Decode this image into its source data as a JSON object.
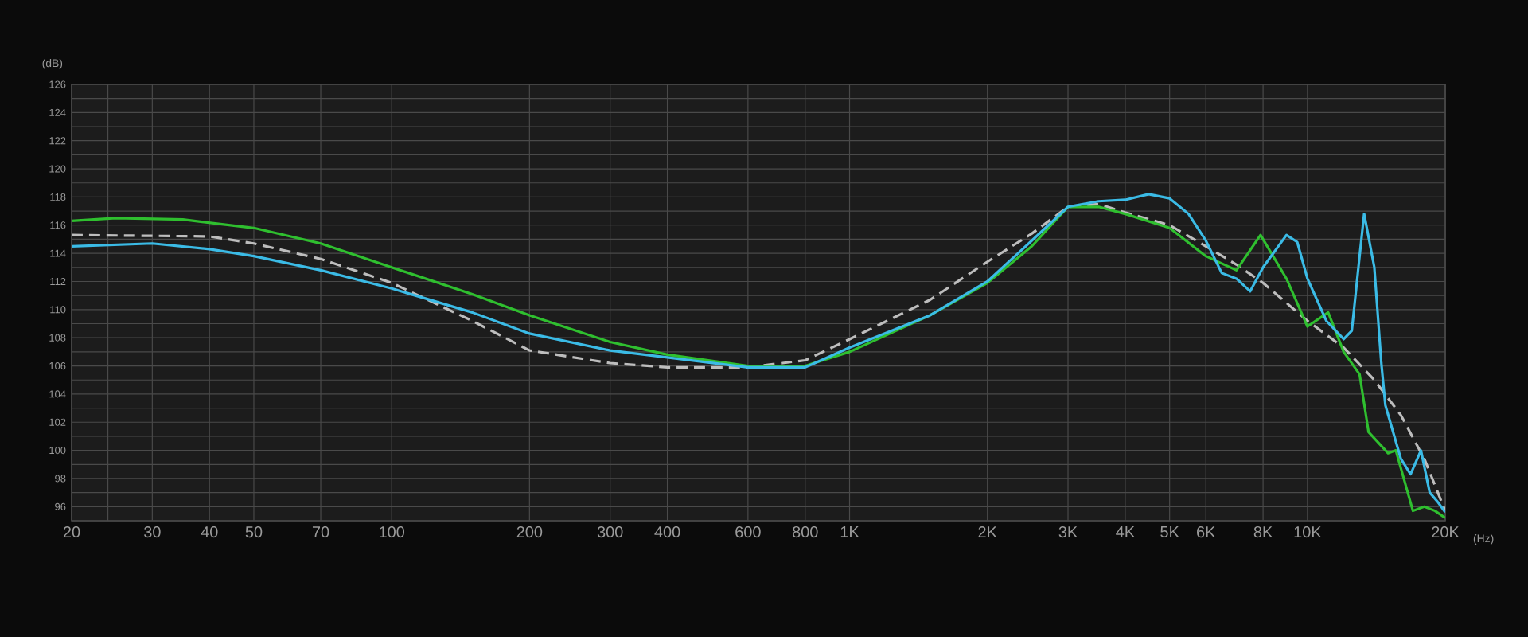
{
  "chart_data": {
    "type": "line",
    "xlabel": "(Hz)",
    "ylabel": "(dB)",
    "log": "x",
    "grid": true,
    "marker": "none",
    "xlim": [
      20,
      20000
    ],
    "ylim": [
      95,
      126
    ],
    "xticks": [
      20,
      {
        "value": 24,
        "label": null
      },
      30,
      40,
      50,
      70,
      100,
      200,
      300,
      400,
      600,
      800,
      {
        "value": 1000,
        "label": "1K"
      },
      {
        "value": 2000,
        "label": "2K"
      },
      {
        "value": 3000,
        "label": "3K"
      },
      {
        "value": 4000,
        "label": "4K"
      },
      {
        "value": 5000,
        "label": "5K"
      },
      {
        "value": 6000,
        "label": "6K"
      },
      {
        "value": 8000,
        "label": "8K"
      },
      {
        "value": 10000,
        "label": "10K"
      },
      {
        "value": 20000,
        "label": "20K"
      }
    ],
    "yticks": [
      {
        "value": 95,
        "label": null
      },
      96,
      {
        "value": 97,
        "label": null
      },
      98,
      {
        "value": 99,
        "label": null
      },
      100,
      {
        "value": 101,
        "label": null
      },
      102,
      {
        "value": 103,
        "label": null
      },
      104,
      {
        "value": 105,
        "label": null
      },
      106,
      {
        "value": 107,
        "label": null
      },
      108,
      {
        "value": 109,
        "label": null
      },
      110,
      {
        "value": 111,
        "label": null
      },
      112,
      {
        "value": 113,
        "label": null
      },
      114,
      {
        "value": 115,
        "label": null
      },
      116,
      {
        "value": 117,
        "label": null
      },
      118,
      {
        "value": 119,
        "label": null
      },
      120,
      {
        "value": 121,
        "label": null
      },
      122,
      {
        "value": 123,
        "label": null
      },
      124,
      {
        "value": 125,
        "label": null
      },
      126
    ],
    "series": [
      {
        "color": "#bdbdbd",
        "line_style": "dashed",
        "x": [
          20,
          40,
          50,
          70,
          100,
          150,
          200,
          300,
          400,
          600,
          800,
          1000,
          1500,
          2000,
          2500,
          3000,
          3500,
          4000,
          5000,
          6000,
          7000,
          8000,
          10000,
          12000,
          14000,
          16000,
          18000,
          20000
        ],
        "values": [
          115.3,
          115.2,
          114.7,
          113.6,
          111.9,
          109.2,
          107.1,
          106.2,
          105.9,
          105.9,
          106.4,
          107.9,
          110.7,
          113.4,
          115.4,
          117.3,
          117.5,
          116.9,
          116.0,
          114.5,
          113.2,
          111.9,
          109.2,
          107.3,
          105.0,
          102.5,
          99.4,
          95.7
        ]
      },
      {
        "color": "#2fbf2f",
        "line_style": "solid",
        "x": [
          20,
          25,
          35,
          50,
          70,
          100,
          150,
          200,
          300,
          400,
          600,
          800,
          1000,
          1500,
          2000,
          2500,
          3000,
          3500,
          4000,
          5000,
          6000,
          7000,
          7900,
          9000,
          10000,
          11100,
          12000,
          13000,
          13600,
          15000,
          15600,
          17000,
          18000,
          19000,
          20000
        ],
        "values": [
          116.3,
          116.5,
          116.4,
          115.8,
          114.7,
          113.0,
          111.1,
          109.6,
          107.7,
          106.8,
          106.0,
          106.0,
          107.0,
          109.6,
          111.9,
          114.5,
          117.3,
          117.3,
          116.8,
          115.8,
          113.8,
          112.8,
          115.3,
          112.2,
          108.8,
          109.8,
          107.0,
          105.4,
          101.3,
          99.8,
          100.0,
          95.7,
          96.0,
          95.7,
          95.2
        ]
      },
      {
        "color": "#3bbbe6",
        "line_style": "solid",
        "x": [
          20,
          30,
          40,
          50,
          70,
          100,
          150,
          200,
          300,
          400,
          600,
          800,
          1000,
          1500,
          2000,
          2500,
          3000,
          3500,
          4000,
          4500,
          5000,
          5500,
          6000,
          6500,
          7000,
          7500,
          8000,
          9000,
          9500,
          10000,
          11000,
          12000,
          12500,
          13000,
          13300,
          14000,
          14500,
          14800,
          16000,
          16800,
          17700,
          18500,
          19300,
          20000
        ],
        "values": [
          114.5,
          114.7,
          114.3,
          113.8,
          112.8,
          111.5,
          109.8,
          108.3,
          107.1,
          106.6,
          105.9,
          105.9,
          107.3,
          109.6,
          112.0,
          114.9,
          117.3,
          117.7,
          117.8,
          118.2,
          117.9,
          116.8,
          114.9,
          112.6,
          112.2,
          111.3,
          113.0,
          115.3,
          114.8,
          112.2,
          109.2,
          107.9,
          108.5,
          113.8,
          116.8,
          113.0,
          106.2,
          103.2,
          99.4,
          98.3,
          100.0,
          97.0,
          96.3,
          95.6
        ]
      }
    ]
  }
}
